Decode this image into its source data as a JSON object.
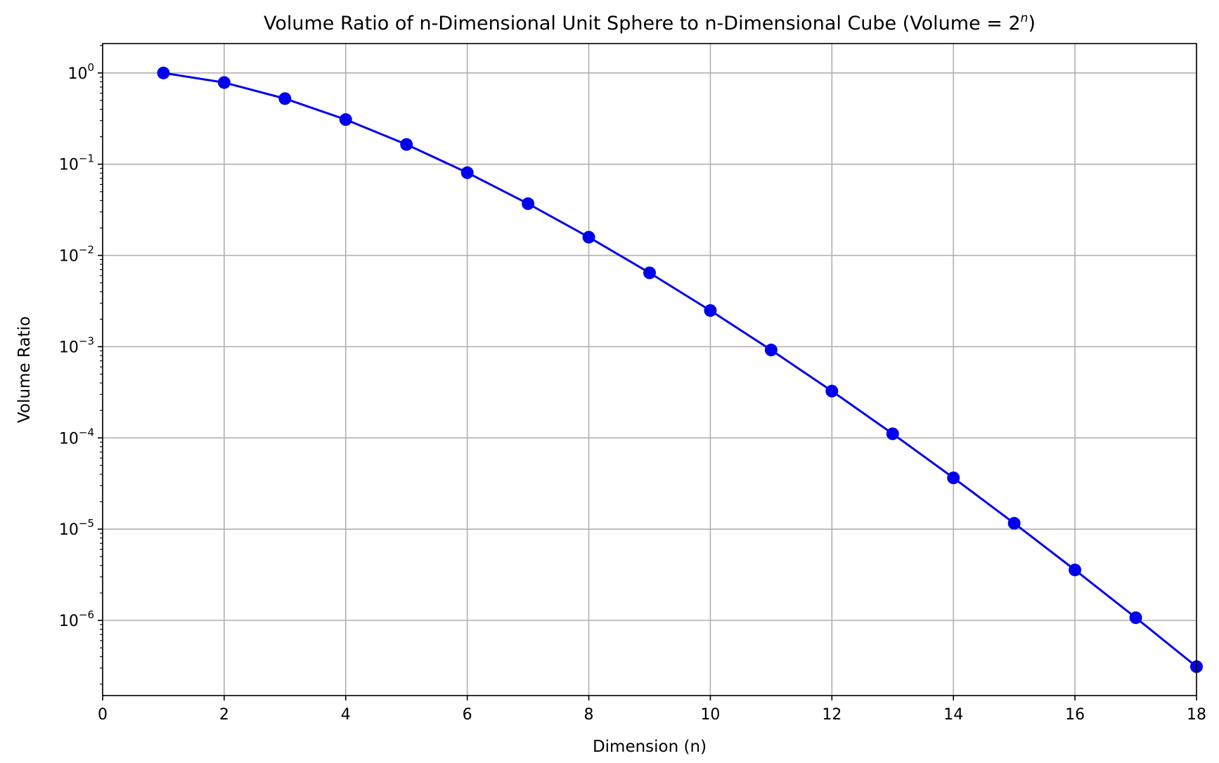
{
  "chart_data": {
    "type": "line",
    "title_main": "Volume Ratio of n-Dimensional Unit Sphere to n-Dimensional Cube (Volume = 2",
    "title_sup": "n",
    "title_end": ")",
    "xlabel": "Dimension (n)",
    "ylabel": "Volume Ratio",
    "xlim": [
      0,
      18
    ],
    "ylim": [
      1.5e-07,
      2.1
    ],
    "yscale": "log",
    "grid": true,
    "x_ticks": [
      0,
      2,
      4,
      6,
      8,
      10,
      12,
      14,
      16,
      18
    ],
    "y_ticks": [
      {
        "value": 1,
        "base": "10",
        "exp": "0"
      },
      {
        "value": 0.1,
        "base": "10",
        "exp": "−1"
      },
      {
        "value": 0.01,
        "base": "10",
        "exp": "−2"
      },
      {
        "value": 0.001,
        "base": "10",
        "exp": "−3"
      },
      {
        "value": 0.0001,
        "base": "10",
        "exp": "−4"
      },
      {
        "value": 1e-05,
        "base": "10",
        "exp": "−5"
      },
      {
        "value": 1e-06,
        "base": "10",
        "exp": "−6"
      }
    ],
    "series": [
      {
        "color": "#0000ee",
        "marker": "circle",
        "x": [
          1,
          2,
          3,
          4,
          5,
          6,
          7,
          8,
          9,
          10,
          11,
          12,
          13,
          14,
          15,
          16,
          17,
          18
        ],
        "y": [
          1.0,
          0.785398,
          0.523599,
          0.308425,
          0.164493,
          0.080746,
          0.036912,
          0.015854,
          0.006442,
          0.00249,
          0.00092,
          0.000326,
          0.000111,
          3.65e-05,
          1.16e-05,
          3.57e-06,
          1.07e-06,
          3.11e-07
        ]
      }
    ]
  }
}
